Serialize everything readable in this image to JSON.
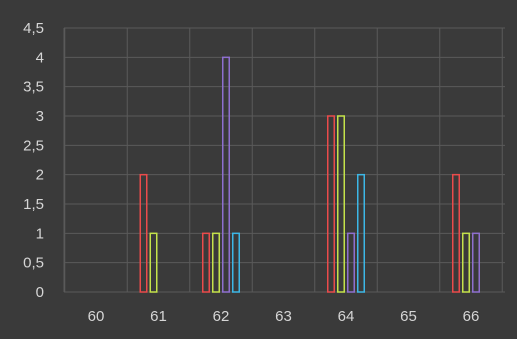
{
  "chart_data": {
    "type": "bar",
    "categories": [
      "60",
      "61",
      "62",
      "63",
      "64",
      "65",
      "66"
    ],
    "series": [
      {
        "color": "#ea4b4b",
        "values": [
          0,
          2,
          1,
          0,
          3,
          0,
          2
        ]
      },
      {
        "color": "#c4e34a",
        "values": [
          0,
          1,
          1,
          0,
          3,
          0,
          1
        ]
      },
      {
        "color": "#8e6fd0",
        "values": [
          0,
          0,
          4,
          0,
          1,
          0,
          1
        ]
      },
      {
        "color": "#3cb7e6",
        "values": [
          0,
          0,
          1,
          0,
          2,
          0,
          0
        ]
      }
    ],
    "y_ticks": [
      "0",
      "0,5",
      "1",
      "1,5",
      "2",
      "2,5",
      "3",
      "3,5",
      "4",
      "4,5"
    ],
    "ylim": [
      0,
      4.5
    ],
    "grid": true,
    "background": "#3a3a3a",
    "gridline_color": "#5a5a5a"
  }
}
